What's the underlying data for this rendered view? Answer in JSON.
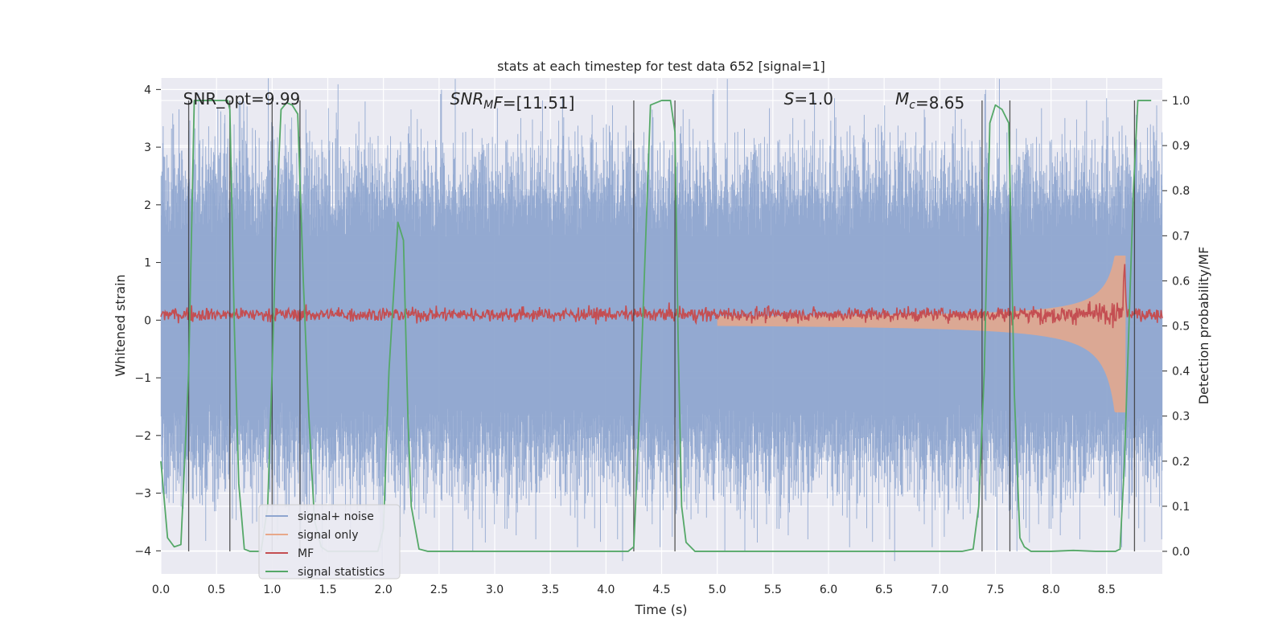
{
  "chart_data": {
    "type": "line",
    "title": "stats at each timestep for test data 652 [signal=1]",
    "xlabel": "Time (s)",
    "ylabel": "Whitened strain",
    "ylabel_right": "Detection probability/MF",
    "xlim": [
      0.0,
      9.0
    ],
    "ylim": [
      -4.4,
      4.2
    ],
    "ylim_right": [
      -0.05,
      1.05
    ],
    "x_ticks": [
      0.0,
      0.5,
      1.0,
      1.5,
      2.0,
      2.5,
      3.0,
      3.5,
      4.0,
      4.5,
      5.0,
      5.5,
      6.0,
      6.5,
      7.0,
      7.5,
      8.0,
      8.5
    ],
    "x_tick_labels": [
      "0.0",
      "0.5",
      "1.0",
      "1.5",
      "2.0",
      "2.5",
      "3.0",
      "3.5",
      "4.0",
      "4.5",
      "5.0",
      "5.5",
      "6.0",
      "6.5",
      "7.0",
      "7.5",
      "8.0",
      "8.5"
    ],
    "y_ticks": [
      -4,
      -3,
      -2,
      -1,
      0,
      1,
      2,
      3,
      4
    ],
    "y_tick_labels": [
      "−4",
      "−3",
      "−2",
      "−1",
      "0",
      "1",
      "2",
      "3",
      "4"
    ],
    "y_ticks_right": [
      0.0,
      0.1,
      0.2,
      0.3,
      0.4,
      0.5,
      0.6,
      0.7,
      0.8,
      0.9,
      1.0
    ],
    "y_tick_labels_right": [
      "0.0",
      "0.1",
      "0.2",
      "0.3",
      "0.4",
      "0.5",
      "0.6",
      "0.7",
      "0.8",
      "0.9",
      "1.0"
    ],
    "grid": true,
    "legend_position": "lower-left",
    "annotations": [
      {
        "x": 0.2,
        "y": 3.85,
        "parts": [
          {
            "text": "SNR_opt=9.99",
            "italic": false
          }
        ]
      },
      {
        "x": 2.6,
        "y": 3.85,
        "parts": [
          {
            "text": "SNR",
            "italic": true
          },
          {
            "text": "M",
            "italic": true,
            "sub": true
          },
          {
            "text": "F",
            "italic": true
          },
          {
            "text": "=[11.51]",
            "italic": false
          }
        ]
      },
      {
        "x": 5.6,
        "y": 3.85,
        "parts": [
          {
            "text": "S",
            "italic": true
          },
          {
            "text": "=1.0",
            "italic": false
          }
        ]
      },
      {
        "x": 6.6,
        "y": 3.85,
        "parts": [
          {
            "text": "M",
            "italic": true
          },
          {
            "text": "c",
            "italic": true,
            "sub": true
          },
          {
            "text": "=8.65",
            "italic": false
          }
        ]
      }
    ],
    "series": [
      {
        "name": "signal+ noise",
        "color": "#8ea5cf",
        "kind": "noise",
        "envelope": 1.9,
        "spike_max": 3.8
      },
      {
        "name": "signal only",
        "color": "#e8a88a",
        "kind": "chirp",
        "start_x": 5.0,
        "merge_x": 8.65,
        "start_amp": 0.05,
        "peak_amp": 1.6
      },
      {
        "name": "MF",
        "color": "#c44e52",
        "kind": "mf",
        "base": 0.1,
        "peak_x": 8.66,
        "peak_y": 1.0
      },
      {
        "name": "signal statistics",
        "color": "#55a868",
        "axis": "right",
        "x": [
          0.0,
          0.06,
          0.12,
          0.18,
          0.25,
          0.3,
          0.35,
          0.45,
          0.55,
          0.6,
          0.62,
          0.66,
          0.7,
          0.75,
          0.8,
          0.9,
          0.96,
          1.0,
          1.04,
          1.08,
          1.13,
          1.18,
          1.23,
          1.28,
          1.33,
          1.38,
          1.44,
          1.5,
          1.6,
          1.8,
          1.95,
          2.0,
          2.05,
          2.13,
          2.18,
          2.22,
          2.25,
          2.32,
          2.4,
          2.6,
          3.0,
          3.5,
          4.0,
          4.2,
          4.25,
          4.3,
          4.4,
          4.5,
          4.58,
          4.62,
          4.65,
          4.68,
          4.72,
          4.8,
          5.0,
          6.0,
          7.0,
          7.2,
          7.3,
          7.35,
          7.4,
          7.45,
          7.5,
          7.56,
          7.62,
          7.67,
          7.72,
          7.76,
          7.82,
          7.9,
          8.0,
          8.2,
          8.4,
          8.58,
          8.62,
          8.66,
          8.7,
          8.74,
          8.78,
          8.82,
          8.9
        ],
        "y": [
          0.2,
          0.03,
          0.01,
          0.015,
          0.4,
          1.0,
          1.0,
          1.0,
          1.0,
          1.0,
          0.98,
          0.5,
          0.15,
          0.005,
          0.0,
          0.0,
          0.1,
          0.4,
          0.75,
          0.98,
          0.995,
          0.99,
          0.97,
          0.6,
          0.3,
          0.07,
          0.01,
          0.0,
          0.0,
          0.0,
          0.0,
          0.05,
          0.4,
          0.73,
          0.69,
          0.3,
          0.1,
          0.005,
          0.0,
          0.0,
          0.0,
          0.0,
          0.0,
          0.0,
          0.01,
          0.3,
          0.99,
          1.0,
          1.0,
          0.93,
          0.45,
          0.1,
          0.02,
          0.0,
          0.0,
          0.0,
          0.0,
          0.0,
          0.005,
          0.1,
          0.4,
          0.95,
          0.99,
          0.98,
          0.95,
          0.35,
          0.03,
          0.01,
          0.0,
          0.0,
          0.0,
          0.002,
          0.0,
          0.0,
          0.005,
          0.2,
          0.5,
          0.8,
          1.0,
          1.0,
          1.0
        ]
      }
    ],
    "vertical_lines": [
      0.25,
      0.62,
      1.0,
      1.25,
      4.25,
      4.62,
      7.38,
      7.63,
      8.75
    ]
  }
}
